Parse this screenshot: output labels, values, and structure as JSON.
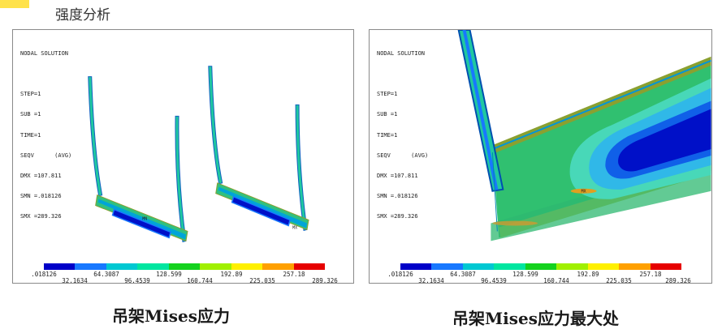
{
  "slide": {
    "heading": "强度分析",
    "accent_color": "#ffe24a"
  },
  "panels": [
    {
      "readout": [
        "NODAL SOLUTION",
        "",
        "STEP=1",
        "SUB =1",
        "TIME=1",
        "SEQV      (AVG)",
        "DMX =107.811",
        "SMN =.018126",
        "SMX =289.326"
      ],
      "caption": "吊架Mises应力",
      "view": "overall hanger frames, two units"
    },
    {
      "readout": [
        "NODAL SOLUTION",
        "",
        "STEP=1",
        "SUB =1",
        "TIME=1",
        "SEQV      (AVG)",
        "DMX =107.811",
        "SMN =.018126",
        "SMX =289.326"
      ],
      "caption": "吊架Mises应力最大处",
      "view": "zoom on maximum stress corner"
    }
  ],
  "legend": {
    "colors": [
      "#0000c8",
      "#1878ff",
      "#00c8d2",
      "#00e6a0",
      "#14d21e",
      "#a0f000",
      "#fff000",
      "#ffa000",
      "#e60000"
    ],
    "labels": [
      ".018126",
      "32.1634",
      "64.3087",
      "96.4539",
      "128.599",
      "160.744",
      "192.89",
      "225.035",
      "257.18",
      "289.326"
    ]
  },
  "markers": {
    "left_max": "MX",
    "left_min": "MN",
    "right_max": "MX"
  }
}
